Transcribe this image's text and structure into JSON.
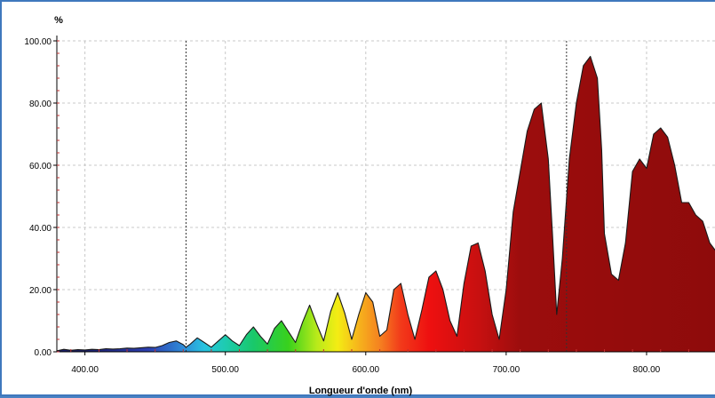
{
  "chart_data": {
    "type": "area",
    "title": "",
    "xlabel": "Longueur d'onde (nm)",
    "ylabel": "%",
    "xlim": [
      380,
      850
    ],
    "ylim": [
      0,
      100
    ],
    "x_ticks": [
      400,
      500,
      600,
      700,
      800
    ],
    "x_tick_labels": [
      "400.00",
      "500.00",
      "600.00",
      "700.00",
      "800.00"
    ],
    "y_ticks": [
      0,
      20,
      40,
      60,
      80,
      100
    ],
    "y_tick_labels": [
      "0.00",
      "20.00",
      "40.00",
      "60.00",
      "80.00",
      "100.00"
    ],
    "grid": true,
    "markers": [
      {
        "x": 472,
        "style": "dashed-vertical"
      },
      {
        "x": 743,
        "style": "dashed-vertical"
      }
    ],
    "fill": "spectral-gradient",
    "series": [
      {
        "values": {
          "x": [
            380,
            385,
            390,
            395,
            400,
            405,
            410,
            415,
            420,
            425,
            430,
            435,
            440,
            445,
            450,
            455,
            460,
            465,
            470,
            472,
            475,
            480,
            485,
            490,
            495,
            500,
            505,
            510,
            515,
            520,
            525,
            530,
            535,
            540,
            545,
            550,
            555,
            560,
            565,
            570,
            575,
            580,
            585,
            590,
            595,
            600,
            605,
            610,
            615,
            620,
            625,
            630,
            635,
            640,
            645,
            650,
            655,
            660,
            665,
            670,
            675,
            680,
            685,
            690,
            695,
            700,
            705,
            710,
            715,
            720,
            725,
            730,
            733,
            736,
            740,
            745,
            750,
            755,
            760,
            765,
            768,
            770,
            775,
            780,
            785,
            790,
            795,
            800,
            805,
            810,
            815,
            820,
            825,
            830,
            835,
            840,
            845,
            850
          ],
          "y": [
            0.3,
            0.8,
            0.5,
            0.7,
            0.6,
            0.8,
            0.7,
            1.0,
            0.9,
            1.0,
            1.2,
            1.1,
            1.3,
            1.5,
            1.4,
            2.0,
            3.0,
            3.5,
            2.3,
            1.5,
            2.5,
            4.5,
            3.0,
            1.5,
            3.5,
            5.5,
            3.5,
            2.0,
            5.5,
            8.0,
            5.0,
            2.5,
            7.5,
            10.0,
            6.5,
            3.0,
            9.5,
            15.0,
            9.0,
            3.5,
            13.0,
            19.0,
            12.5,
            4.0,
            12.0,
            19.0,
            16.0,
            5.0,
            7.0,
            20.0,
            22.0,
            12.0,
            4.0,
            13.5,
            24.0,
            26.0,
            20.0,
            10.0,
            5.0,
            22.0,
            34.0,
            35.0,
            26.0,
            12.0,
            4.0,
            20.0,
            45.0,
            58.0,
            71.0,
            78.0,
            80.0,
            62.0,
            38.0,
            12.0,
            30.0,
            62.0,
            80.0,
            92.0,
            95.0,
            88.0,
            65.0,
            38.0,
            25.0,
            23.0,
            35.0,
            58.0,
            62.0,
            59.0,
            70.0,
            72.0,
            69.0,
            60.0,
            48.0,
            48.0,
            44.0,
            42.0,
            35.0,
            32.0
          ]
        }
      }
    ]
  }
}
